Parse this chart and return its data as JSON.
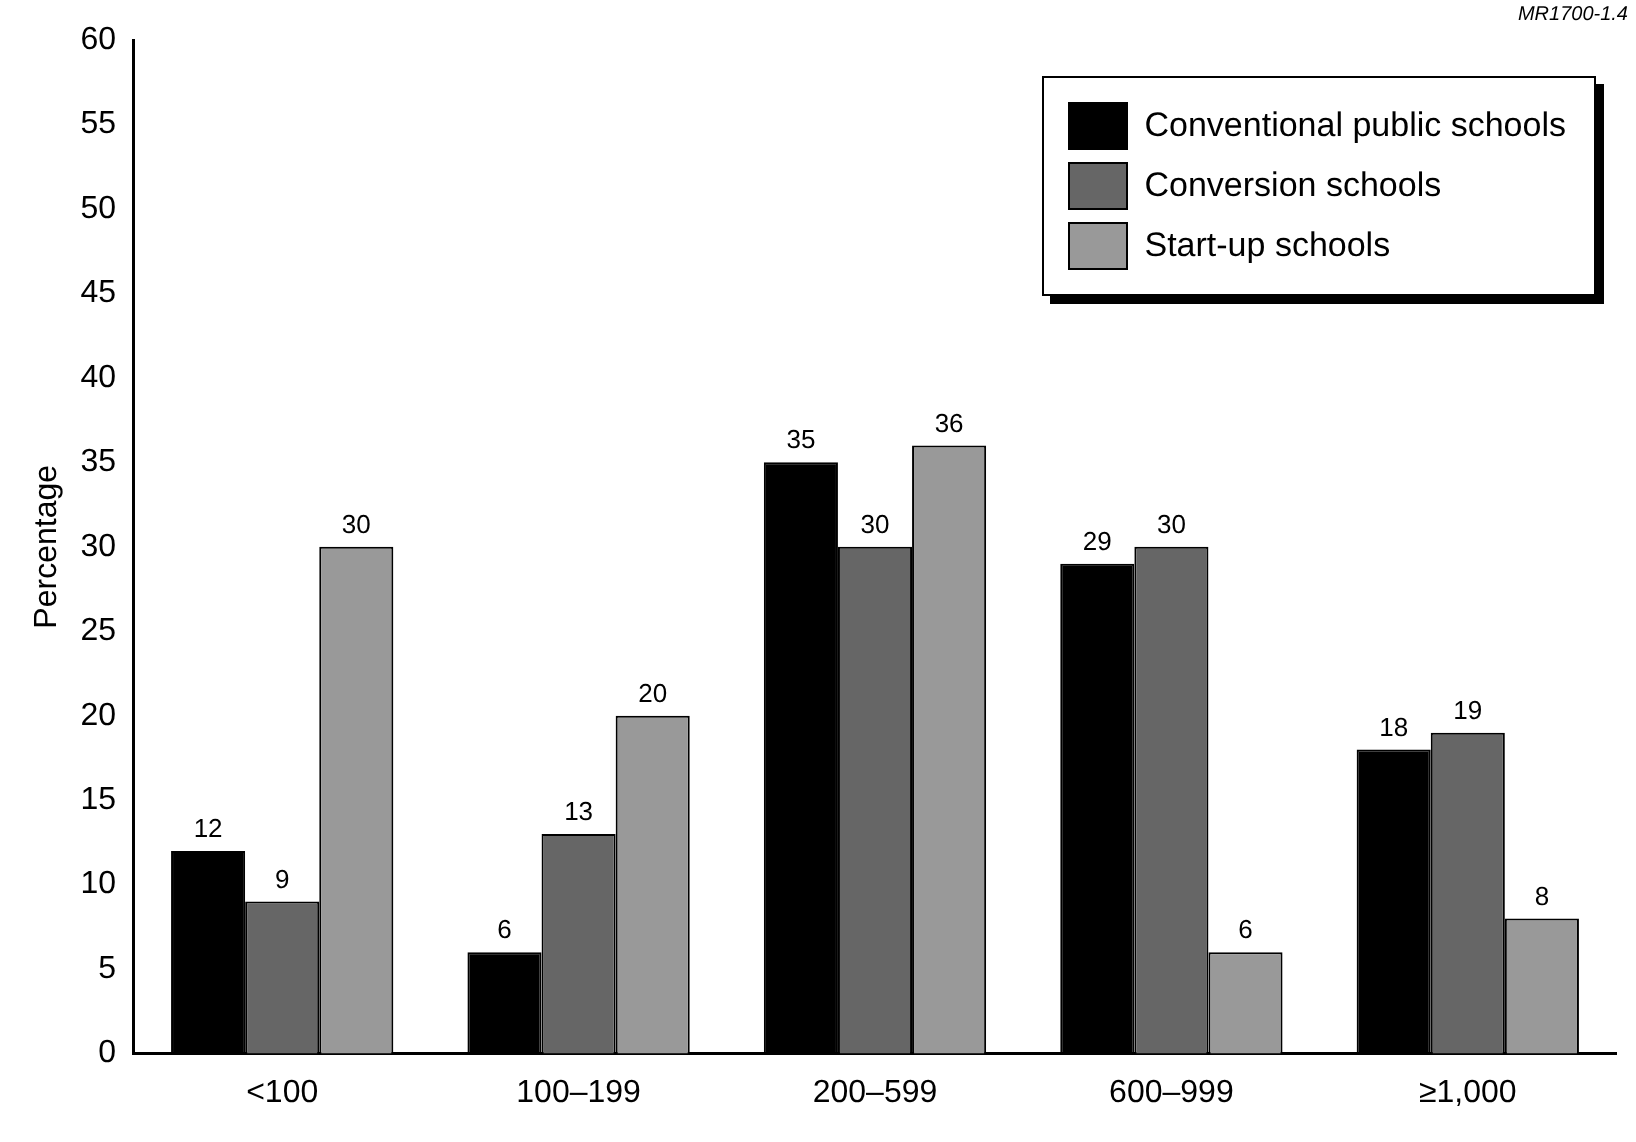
{
  "chart_data": {
    "type": "bar",
    "ylabel": "Percentage",
    "categories": [
      "<100",
      "100–199",
      "200–599",
      "600–999",
      "≥1,000"
    ],
    "series": [
      {
        "name": "Conventional public schools",
        "color": "#000000",
        "values": [
          12,
          6,
          35,
          29,
          18
        ]
      },
      {
        "name": "Conversion schools",
        "color": "#666666",
        "values": [
          9,
          13,
          30,
          30,
          19
        ]
      },
      {
        "name": "Start-up schools",
        "color": "#999999",
        "values": [
          30,
          20,
          36,
          6,
          8
        ]
      }
    ],
    "ylim": [
      0,
      60
    ],
    "yticks": [
      0,
      5,
      10,
      15,
      20,
      25,
      30,
      35,
      40,
      45,
      50,
      55,
      60
    ],
    "grid": false,
    "legend": "top right",
    "data_labels": true,
    "annotations": [
      "MR1700-1.4"
    ]
  }
}
